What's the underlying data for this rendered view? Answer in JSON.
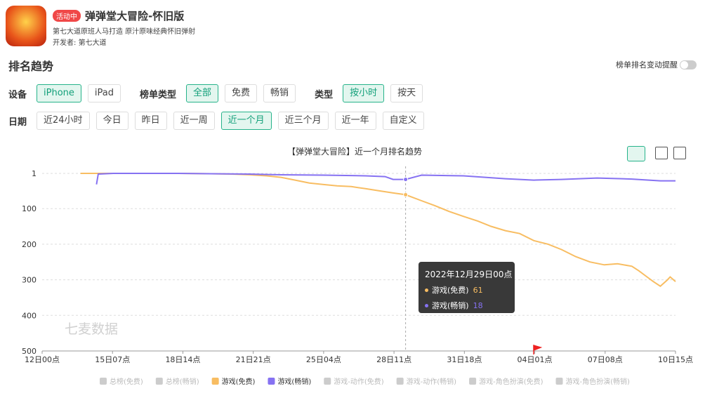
{
  "app": {
    "badge": "活动中",
    "name": "弹弹堂大冒险-怀旧版",
    "description": "第七大道原班人马打造 原汁原味经典怀旧弹射",
    "developer_label": "开发者:",
    "developer": "第七大道"
  },
  "section_title": "排名趋势",
  "toggle_label": "榜单排名变动提醒",
  "filters": [
    [
      {
        "label": "设备",
        "options": [
          "iPhone",
          "iPad"
        ],
        "selected": 0
      },
      {
        "label": "榜单类型",
        "options": [
          "全部",
          "免费",
          "畅销"
        ],
        "selected": 0
      },
      {
        "label": "类型",
        "options": [
          "按小时",
          "按天"
        ],
        "selected": 0
      }
    ],
    [
      {
        "label": "日期",
        "options": [
          "近24小时",
          "今日",
          "昨日",
          "近一周",
          "近一个月",
          "近三个月",
          "近一年",
          "自定义"
        ],
        "selected": 4
      }
    ]
  ],
  "chart_data": {
    "type": "line",
    "title": "【弹弹堂大冒险】近一个月排名趋势",
    "watermark": "七麦数据",
    "xlim": [
      0,
      711
    ],
    "xticks": [
      {
        "value": 0,
        "label": "12日00点"
      },
      {
        "value": 79,
        "label": "15日07点"
      },
      {
        "value": 158,
        "label": "18日14点"
      },
      {
        "value": 237,
        "label": "21日21点"
      },
      {
        "value": 316,
        "label": "25日04点"
      },
      {
        "value": 395,
        "label": "28日11点"
      },
      {
        "value": 474,
        "label": "31日18点"
      },
      {
        "value": 553,
        "label": "04日01点"
      },
      {
        "value": 632,
        "label": "07日08点"
      },
      {
        "value": 711,
        "label": "10日15点"
      }
    ],
    "ylim": [
      1,
      500
    ],
    "y_inverted": true,
    "yticks": [
      1,
      100,
      200,
      300,
      400,
      500
    ],
    "grid": true,
    "series": [
      {
        "name": "总榜(免费)",
        "visible": false
      },
      {
        "name": "总榜(畅销)",
        "visible": false
      },
      {
        "name": "游戏(免费)",
        "visible": true,
        "color": "#f8bd62",
        "x": [
          43,
          71,
          110,
          150,
          189,
          213,
          233,
          252,
          268,
          284,
          300,
          315,
          331,
          347,
          363,
          378,
          394,
          408,
          426,
          441,
          457,
          473,
          489,
          504,
          520,
          536,
          552,
          568,
          583,
          599,
          615,
          631,
          646,
          662,
          670,
          678,
          686,
          694,
          702,
          705,
          711
        ],
        "values": [
          1,
          1,
          1,
          1,
          2,
          3,
          5,
          8,
          12,
          20,
          28,
          32,
          36,
          38,
          44,
          50,
          56,
          61,
          78,
          92,
          108,
          122,
          135,
          150,
          162,
          170,
          190,
          200,
          215,
          235,
          250,
          258,
          255,
          262,
          275,
          290,
          305,
          318,
          300,
          292,
          305
        ]
      },
      {
        "name": "游戏(畅销)",
        "visible": true,
        "color": "#8672f2",
        "x": [
          61,
          63,
          80,
          150,
          189,
          233,
          268,
          315,
          363,
          385,
          394,
          408,
          426,
          473,
          520,
          552,
          583,
          623,
          662,
          694,
          711
        ],
        "values": [
          32,
          3,
          1,
          1,
          2,
          3,
          5,
          6,
          8,
          10,
          18,
          18,
          6,
          8,
          16,
          20,
          18,
          14,
          17,
          22,
          22
        ]
      },
      {
        "name": "游戏-动作(免费)",
        "visible": false
      },
      {
        "name": "游戏-动作(畅销)",
        "visible": false
      },
      {
        "name": "游戏-角色扮演(免费)",
        "visible": false
      },
      {
        "name": "游戏-角色扮演(畅销)",
        "visible": false
      }
    ],
    "tooltip": {
      "title": "2022年12月29日00点",
      "x": 408,
      "items": [
        {
          "series": 2,
          "value": 61
        },
        {
          "series": 3,
          "value": 18
        }
      ]
    }
  }
}
